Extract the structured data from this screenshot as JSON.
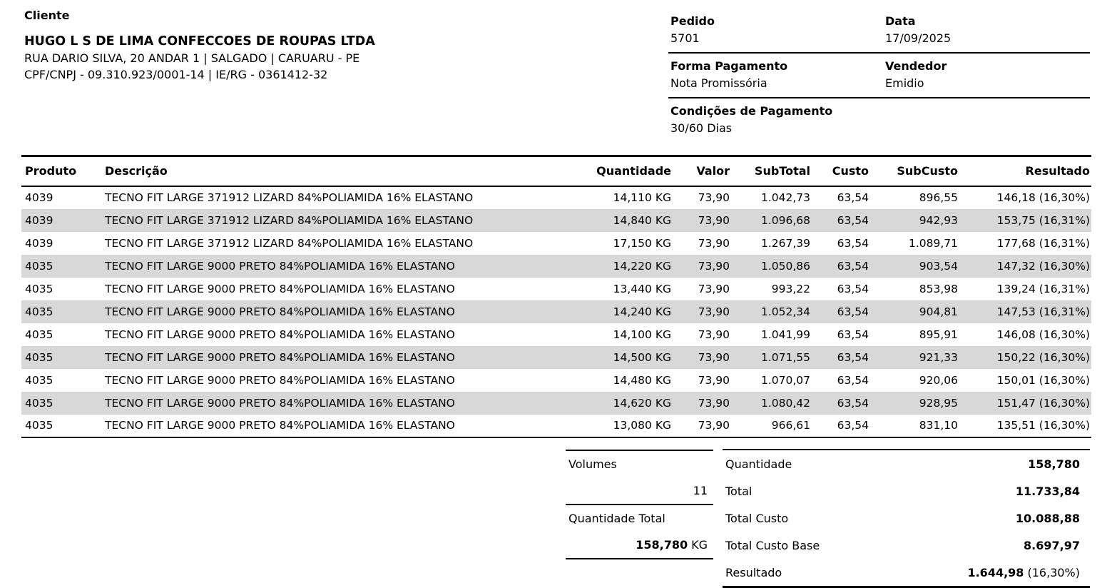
{
  "colors": {
    "row_stripe": "#d8d8d8",
    "text": "#000000"
  },
  "client": {
    "label": "Cliente",
    "name": "HUGO L S DE LIMA CONFECCOES DE ROUPAS LTDA",
    "address": "RUA DARIO SILVA, 20 ANDAR 1 | SALGADO | CARUARU - PE",
    "documents": "CPF/CNPJ - 09.310.923/0001-14 | IE/RG - 0361412-32"
  },
  "order": {
    "pedido_label": "Pedido",
    "pedido_value": "5701",
    "data_label": "Data",
    "data_value": "17/09/2025",
    "forma_pagamento_label": "Forma Pagamento",
    "forma_pagamento_value": "Nota Promissória",
    "vendedor_label": "Vendedor",
    "vendedor_value": "Emidio",
    "condicoes_label": "Condições de Pagamento",
    "condicoes_value": "30/60 Dias"
  },
  "table": {
    "headers": {
      "produto": "Produto",
      "descricao": "Descrição",
      "quantidade": "Quantidade",
      "valor": "Valor",
      "subtotal": "SubTotal",
      "custo": "Custo",
      "subcusto": "SubCusto",
      "resultado": "Resultado"
    },
    "rows": [
      {
        "produto": "4039",
        "descricao": "TECNO FIT LARGE 371912 LIZARD 84%POLIAMIDA 16% ELASTANO",
        "quantidade": "14,110 KG",
        "valor": "73,90",
        "subtotal": "1.042,73",
        "custo": "63,54",
        "subcusto": "896,55",
        "resultado": "146,18 (16,30%)"
      },
      {
        "produto": "4039",
        "descricao": "TECNO FIT LARGE 371912 LIZARD 84%POLIAMIDA 16% ELASTANO",
        "quantidade": "14,840 KG",
        "valor": "73,90",
        "subtotal": "1.096,68",
        "custo": "63,54",
        "subcusto": "942,93",
        "resultado": "153,75 (16,31%)"
      },
      {
        "produto": "4039",
        "descricao": "TECNO FIT LARGE 371912 LIZARD 84%POLIAMIDA 16% ELASTANO",
        "quantidade": "17,150 KG",
        "valor": "73,90",
        "subtotal": "1.267,39",
        "custo": "63,54",
        "subcusto": "1.089,71",
        "resultado": "177,68 (16,31%)"
      },
      {
        "produto": "4035",
        "descricao": "TECNO FIT LARGE 9000 PRETO 84%POLIAMIDA 16% ELASTANO",
        "quantidade": "14,220 KG",
        "valor": "73,90",
        "subtotal": "1.050,86",
        "custo": "63,54",
        "subcusto": "903,54",
        "resultado": "147,32 (16,30%)"
      },
      {
        "produto": "4035",
        "descricao": "TECNO FIT LARGE 9000 PRETO 84%POLIAMIDA 16% ELASTANO",
        "quantidade": "13,440 KG",
        "valor": "73,90",
        "subtotal": "993,22",
        "custo": "63,54",
        "subcusto": "853,98",
        "resultado": "139,24 (16,31%)"
      },
      {
        "produto": "4035",
        "descricao": "TECNO FIT LARGE 9000 PRETO 84%POLIAMIDA 16% ELASTANO",
        "quantidade": "14,240 KG",
        "valor": "73,90",
        "subtotal": "1.052,34",
        "custo": "63,54",
        "subcusto": "904,81",
        "resultado": "147,53 (16,31%)"
      },
      {
        "produto": "4035",
        "descricao": "TECNO FIT LARGE 9000 PRETO 84%POLIAMIDA 16% ELASTANO",
        "quantidade": "14,100 KG",
        "valor": "73,90",
        "subtotal": "1.041,99",
        "custo": "63,54",
        "subcusto": "895,91",
        "resultado": "146,08 (16,30%)"
      },
      {
        "produto": "4035",
        "descricao": "TECNO FIT LARGE 9000 PRETO 84%POLIAMIDA 16% ELASTANO",
        "quantidade": "14,500 KG",
        "valor": "73,90",
        "subtotal": "1.071,55",
        "custo": "63,54",
        "subcusto": "921,33",
        "resultado": "150,22 (16,30%)"
      },
      {
        "produto": "4035",
        "descricao": "TECNO FIT LARGE 9000 PRETO 84%POLIAMIDA 16% ELASTANO",
        "quantidade": "14,480 KG",
        "valor": "73,90",
        "subtotal": "1.070,07",
        "custo": "63,54",
        "subcusto": "920,06",
        "resultado": "150,01 (16,30%)"
      },
      {
        "produto": "4035",
        "descricao": "TECNO FIT LARGE 9000 PRETO 84%POLIAMIDA 16% ELASTANO",
        "quantidade": "14,620 KG",
        "valor": "73,90",
        "subtotal": "1.080,42",
        "custo": "63,54",
        "subcusto": "928,95",
        "resultado": "151,47 (16,30%)"
      },
      {
        "produto": "4035",
        "descricao": "TECNO FIT LARGE 9000 PRETO 84%POLIAMIDA 16% ELASTANO",
        "quantidade": "13,080 KG",
        "valor": "73,90",
        "subtotal": "966,61",
        "custo": "63,54",
        "subcusto": "831,10",
        "resultado": "135,51 (16,30%)"
      }
    ]
  },
  "totals_left": {
    "volumes_label": "Volumes",
    "volumes_value": "11",
    "quantidade_total_label": "Quantidade Total",
    "quantidade_total_value": "158,780",
    "quantidade_total_unit": "KG"
  },
  "totals_right": {
    "quantidade_label": "Quantidade",
    "quantidade_value": "158,780",
    "total_label": "Total",
    "total_value": "11.733,84",
    "total_custo_label": "Total Custo",
    "total_custo_value": "10.088,88",
    "total_custo_base_label": "Total Custo Base",
    "total_custo_base_value": "8.697,97",
    "resultado_label": "Resultado",
    "resultado_value": "1.644,98",
    "resultado_suffix": " (16,30%)"
  }
}
